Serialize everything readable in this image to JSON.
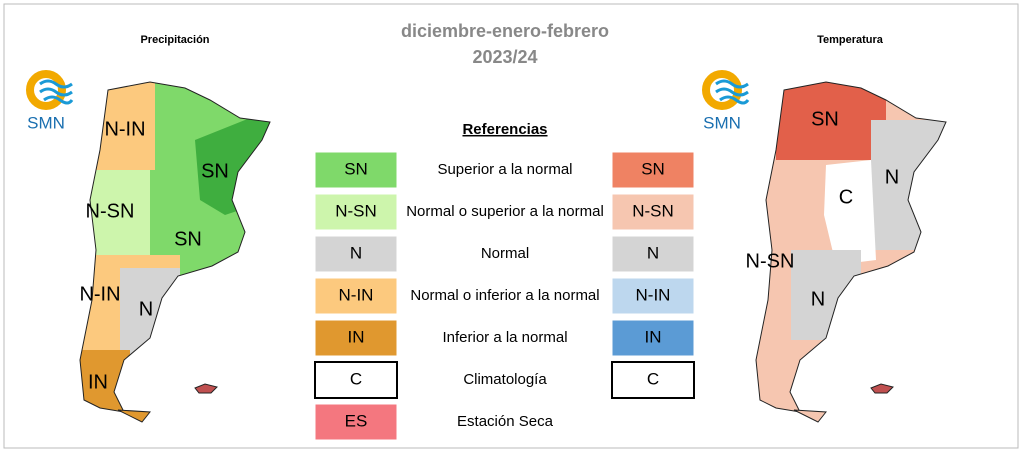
{
  "title": "diciembre-enero-febrero",
  "subtitle": "2023/24",
  "left_map": {
    "title": "Precipitación",
    "logo": "SMN",
    "labels": [
      "N-IN",
      "SN",
      "N-SN",
      "SN",
      "N-IN",
      "N",
      "IN"
    ]
  },
  "right_map": {
    "title": "Temperatura",
    "logo": "SMN",
    "labels": [
      "SN",
      "C",
      "N",
      "N-SN",
      "N"
    ]
  },
  "legend": {
    "title": "Referencias",
    "rows": [
      {
        "code": "SN",
        "description": "Superior a la normal",
        "color": "#7fd96a",
        "temp_code": "SN",
        "temp_color": "#ef8263"
      },
      {
        "code": "N-SN",
        "description": "Normal o superior a la normal",
        "color": "#cdf5ac",
        "temp_code": "N-SN",
        "temp_color": "#f6c6b0"
      },
      {
        "code": "N",
        "description": "Normal",
        "color": "#d4d4d4",
        "temp_code": "N",
        "temp_color": "#d4d4d4"
      },
      {
        "code": "N-IN",
        "description": "Normal o inferior a la normal",
        "color": "#fcc97e",
        "temp_code": "N-IN",
        "temp_color": "#bdd7ee"
      },
      {
        "code": "IN",
        "description": "Inferior a la normal",
        "color": "#e0982f",
        "temp_code": "IN",
        "temp_color": "#5b9bd5"
      },
      {
        "code": "C",
        "description": "Climatología",
        "color": "#ffffff",
        "temp_code": "C",
        "temp_color": "#ffffff"
      },
      {
        "code": "ES",
        "description": "Estación Seca",
        "color": "#f4777f"
      }
    ]
  }
}
